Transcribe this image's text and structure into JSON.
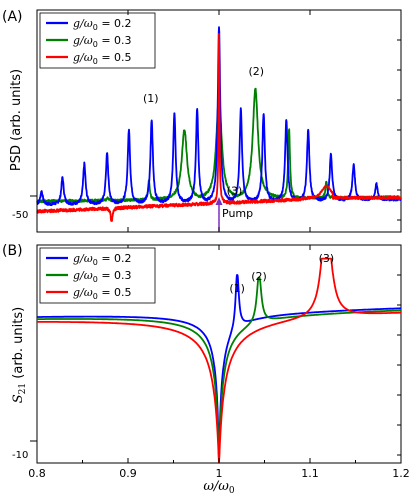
{
  "chart_data": [
    {
      "type": "line",
      "panel_label": "(A)",
      "ylabel": "PSD (arb. units)",
      "xlim": [
        0.8,
        1.2
      ],
      "y_scale_value": "-50",
      "grid": false,
      "legend_position": "top-left",
      "series": [
        {
          "name": "g/ω0 = 0.2",
          "legend_g": "g",
          "legend_rest": "/ω",
          "legend_sub": "0",
          "legend_value": " = 0.2",
          "color": "#0000ff",
          "baseline": "~flat near -62 rising slightly to -60",
          "peaks_x": [
            0.805,
            0.828,
            0.852,
            0.877,
            0.901,
            0.926,
            0.951,
            0.976,
            1.0,
            1.024,
            1.049,
            1.074,
            1.098,
            1.123,
            1.148,
            1.173
          ],
          "peaks_y": [
            -58,
            -54,
            -50,
            -47,
            -40,
            -37,
            -35,
            -34,
            -10,
            -34,
            -35,
            -37,
            -40,
            -47,
            -50,
            -56
          ]
        },
        {
          "name": "g/ω0 = 0.3",
          "legend_g": "g",
          "legend_rest": "/ω",
          "legend_sub": "0",
          "legend_value": " = 0.3",
          "color": "#008000",
          "peaks_x": [
            0.878,
            0.923,
            0.962,
            1.0,
            1.04,
            1.077,
            1.118,
            1.152
          ],
          "peaks_y": [
            -60,
            -55,
            -40,
            -30,
            -28,
            -40,
            -55,
            -60
          ]
        },
        {
          "name": "g/ω0 = 0.5",
          "legend_g": "g",
          "legend_rest": "/ω",
          "legend_sub": "0",
          "legend_value": " = 0.5",
          "color": "#ff0000",
          "features_x": [
            0.882,
            1.0,
            1.118
          ],
          "features_y": [
            -65,
            -12,
            -56
          ]
        }
      ],
      "annotations": [
        {
          "text": "(1)",
          "x": 0.925,
          "y": -32
        },
        {
          "text": "(2)",
          "x": 1.041,
          "y": -24
        },
        {
          "text": "(3)",
          "x": 1.017,
          "y": -59
        },
        {
          "text": "Pump",
          "x": 1.003,
          "y": -66
        }
      ]
    },
    {
      "type": "line",
      "panel_label": "(B)",
      "ylabel_s": "S",
      "ylabel_sub": "21",
      "ylabel_units": "(arb. units)",
      "xlabel": "ω/ω",
      "xlabel_sub": "0",
      "xlim": [
        0.8,
        1.2
      ],
      "xticks": [
        "0.8",
        "0.9",
        "1",
        "1.1",
        "1.2"
      ],
      "y_scale_value": "-10",
      "grid": false,
      "legend_position": "top-left",
      "series": [
        {
          "name": "g/ω0 = 0.2",
          "legend_g": "g",
          "legend_rest": "/ω",
          "legend_sub": "0",
          "legend_value": " = 0.2",
          "color": "#0000ff",
          "resonance_x": 1.02,
          "resonance_peak": 0
        },
        {
          "name": "g/ω0 = 0.3",
          "legend_g": "g",
          "legend_rest": "/ω",
          "legend_sub": "0",
          "legend_value": " = 0.3",
          "color": "#008000",
          "resonance_x": 1.044,
          "resonance_peak": 0
        },
        {
          "name": "g/ω0 = 0.5",
          "legend_g": "g",
          "legend_rest": "/ω",
          "legend_sub": "0",
          "legend_value": " = 0.5",
          "color": "#ff0000",
          "resonance_x": 1.118,
          "resonance_peak": 3
        }
      ],
      "annotations": [
        {
          "text": "(1)",
          "x": 1.02,
          "y": 1.5
        },
        {
          "text": "(2)",
          "x": 1.044,
          "y": 1.5
        },
        {
          "text": "(3)",
          "x": 1.118,
          "y": 4.5
        }
      ]
    }
  ]
}
